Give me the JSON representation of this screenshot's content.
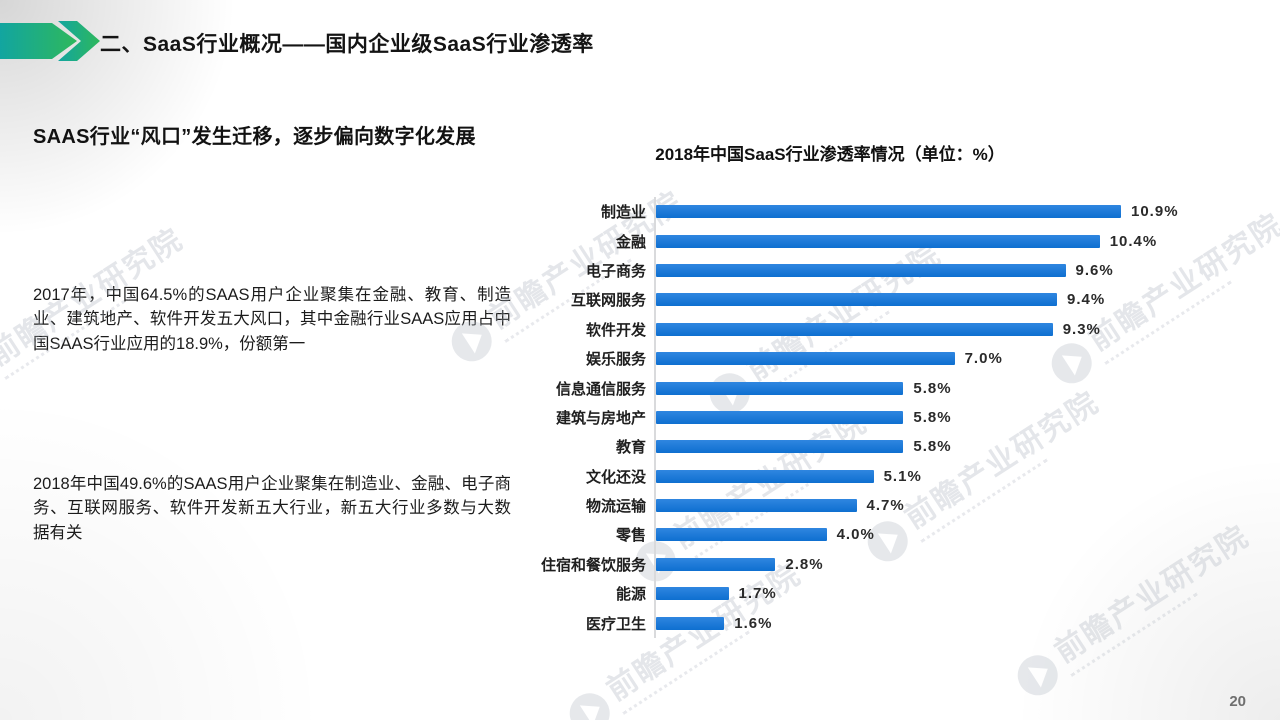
{
  "slide": {
    "header": {
      "title": "二、SaaS行业概况——国内企业级SaaS行业渗透率"
    },
    "subtitle": "SAAS行业“风口”发生迁移，逐步偏向数字化发展",
    "paragraphs": [
      "2017年，中国64.5%的SAAS用户企业聚集在金融、教育、制造业、建筑地产、软件开发五大风口，其中金融行业SAAS应用占中国SAAS行业应用的18.9%，份额第一",
      "2018年中国49.6%的SAAS用户企业聚集在制造业、金融、电子商务、互联网服务、软件开发新五大行业，新五大行业多数与大数据有关"
    ],
    "watermark_text": "前瞻产业研究院",
    "page_number": "20",
    "accent_green_start": "#12a5a0",
    "accent_green_end": "#2eb85c"
  },
  "chart_data": {
    "type": "bar",
    "orientation": "horizontal",
    "title": "2018年中国SaaS行业渗透率情况（单位：%）",
    "unit": "%",
    "categories": [
      "制造业",
      "金融",
      "电子商务",
      "互联网服务",
      "软件开发",
      "娱乐服务",
      "信息通信服务",
      "建筑与房地产",
      "教育",
      "文化还没",
      "物流运输",
      "零售",
      "住宿和餐饮服务",
      "能源",
      "医疗卫生"
    ],
    "values": [
      10.9,
      10.4,
      9.6,
      9.4,
      9.3,
      7.0,
      5.8,
      5.8,
      5.8,
      5.1,
      4.7,
      4.0,
      2.8,
      1.7,
      1.6
    ],
    "value_labels": [
      "10.9%",
      "10.4%",
      "9.6%",
      "9.4%",
      "9.3%",
      "7.0%",
      "5.8%",
      "5.8%",
      "5.8%",
      "5.1%",
      "4.7%",
      "4.0%",
      "2.8%",
      "1.7%",
      "1.6%"
    ],
    "bar_color": "#1376d6",
    "xlim": [
      0,
      11.5
    ],
    "grid": false,
    "legend": false
  }
}
